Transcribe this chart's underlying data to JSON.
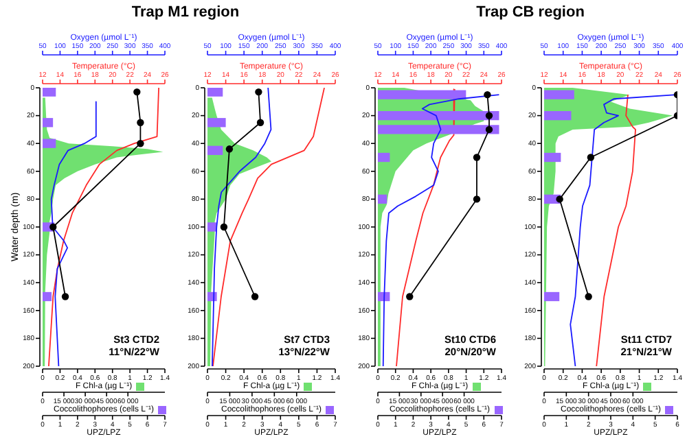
{
  "chart_data": [
    {
      "type": "area",
      "orientation": "horizontal",
      "title": "Trap M1 region",
      "ylabel": "Water depth (m)",
      "annotations": [
        "St3 CTD2",
        "11°N/22°W"
      ],
      "ylim": [
        200,
        0
      ],
      "yticks": [
        0,
        20,
        40,
        60,
        80,
        100,
        120,
        140,
        160,
        180,
        200
      ],
      "xlabel": "F Chl-a (µg L⁻¹)",
      "xlim": [
        0,
        1.4
      ],
      "xticks": [
        0,
        0.2,
        0.4,
        0.6,
        0.8,
        1,
        1.2,
        1.4
      ],
      "x2label": "Temperature (°C)",
      "x2lim": [
        12,
        26
      ],
      "x2ticks": [
        12,
        14,
        16,
        18,
        20,
        22,
        24,
        26
      ],
      "series": [
        {
          "color": "#70e070",
          "x": [
            7,
            20,
            30,
            36,
            40,
            42,
            44,
            46,
            48,
            50,
            55,
            60,
            65,
            70,
            80,
            90,
            96,
            104,
            120,
            146,
            154,
            200
          ],
          "values": [
            0.03,
            0.04,
            0.05,
            0.08,
            0.3,
            0.8,
            1.2,
            1.38,
            1.1,
            0.85,
            0.6,
            0.4,
            0.25,
            0.15,
            0.12,
            0.1,
            0.08,
            0.08,
            0.05,
            0.03,
            0.03,
            0.02
          ]
        },
        {
          "type": "line",
          "color": "#ff2a2a",
          "axis": "x2",
          "x": [
            0,
            35,
            40,
            45,
            55,
            70,
            90,
            110,
            130,
            150,
            200
          ],
          "values": [
            25.3,
            25.1,
            22.5,
            20.5,
            18.5,
            17,
            15.4,
            14.4,
            13.7,
            13.2,
            12.7
          ]
        }
      ]
    },
    {
      "type": "bar",
      "orientation": "horizontal",
      "tick_labels": "x",
      "ylim": [
        200,
        0
      ],
      "xlabel": "Coccolithophores (cells L⁻¹)",
      "xlim": [
        0,
        86000
      ],
      "xticks": [
        0,
        {
          "value": 15000,
          "label": "15 000"
        },
        {
          "value": 30000,
          "label": "30 000"
        },
        {
          "value": 45000,
          "label": "45 000"
        },
        {
          "value": 60000,
          "label": "60 000"
        }
      ],
      "x2label": "Oxygen (µmol L⁻¹)",
      "x2lim": [
        50,
        400
      ],
      "x2ticks": [
        50,
        100,
        150,
        200,
        250,
        300,
        350,
        400
      ],
      "series": [
        {
          "color": "#9966ff",
          "x": [
            3,
            25,
            40,
            100,
            150
          ],
          "values": [
            9000,
            7000,
            9000,
            8000,
            6000
          ]
        },
        {
          "type": "line",
          "color": "#1a1aff",
          "axis": "x2",
          "x": [
            10,
            35,
            40,
            45,
            55,
            70,
            80,
            100,
            110,
            115,
            130,
            150,
            200
          ],
          "values": [
            203,
            203,
            170,
            123,
            98,
            83,
            75,
            79,
            111,
            121,
            92,
            86,
            96
          ]
        }
      ]
    },
    {
      "type": "line",
      "orientation": "horizontal",
      "tick_labels": "x",
      "ylim": [
        200,
        0
      ],
      "xlabel": "UPZ/LPZ",
      "xlim": [
        0,
        7
      ],
      "xticks": [
        0,
        1,
        2,
        3,
        4,
        5,
        6,
        7
      ],
      "marker": "circle",
      "series": [
        {
          "color": "#000000",
          "x": [
            3,
            25,
            40,
            100,
            150
          ],
          "values": [
            5.4,
            5.6,
            5.6,
            0.6,
            1.3
          ]
        }
      ]
    },
    {
      "type": "area",
      "orientation": "horizontal",
      "annotations": [
        "St7 CTD3",
        "13°N/22°W"
      ],
      "ylim": [
        200,
        0
      ],
      "yticks": [
        0,
        20,
        40,
        60,
        80,
        100,
        120,
        140,
        160,
        180,
        200
      ],
      "xlabel": "F Chl-a (µg L⁻¹)",
      "xlim": [
        0,
        1.4
      ],
      "xticks": [
        0,
        0.2,
        0.4,
        0.6,
        0.8,
        1,
        1.2,
        1.4
      ],
      "x2label": "Temperature (°C)",
      "x2lim": [
        12,
        26
      ],
      "x2ticks": [
        12,
        14,
        16,
        18,
        20,
        22,
        24,
        26
      ],
      "series": [
        {
          "color": "#70e070",
          "x": [
            7,
            15,
            20,
            30,
            40,
            45,
            50,
            53,
            58,
            62,
            70,
            80,
            90,
            96,
            104,
            146,
            154,
            200
          ],
          "values": [
            0.05,
            0.08,
            0.1,
            0.15,
            0.3,
            0.5,
            0.65,
            0.7,
            0.5,
            0.35,
            0.25,
            0.2,
            0.1,
            0.08,
            0.08,
            0.04,
            0.04,
            0.03
          ]
        },
        {
          "type": "line",
          "color": "#ff2a2a",
          "axis": "x2",
          "x": [
            0,
            35,
            45,
            55,
            65,
            80,
            90,
            110,
            150,
            200
          ],
          "values": [
            24.8,
            23.6,
            22.6,
            19,
            17.5,
            16.5,
            15.8,
            14.5,
            13.5,
            12.6
          ]
        }
      ]
    },
    {
      "type": "bar",
      "orientation": "horizontal",
      "tick_labels": "x",
      "ylim": [
        200,
        0
      ],
      "xlabel": "Coccolithophores (cells L⁻¹)",
      "xlim": [
        0,
        86000
      ],
      "xticks": [
        0,
        {
          "value": 15000,
          "label": "15 000"
        },
        {
          "value": 30000,
          "label": "30 000"
        },
        {
          "value": 45000,
          "label": "45 000"
        },
        {
          "value": 60000,
          "label": "60 000"
        }
      ],
      "x2label": "Oxygen (µmol L⁻¹)",
      "x2lim": [
        50,
        400
      ],
      "x2ticks": [
        50,
        100,
        150,
        200,
        250,
        300,
        350,
        400
      ],
      "series": [
        {
          "color": "#9966ff",
          "x": [
            3,
            25,
            45,
            100,
            150
          ],
          "values": [
            10000,
            12000,
            10000,
            6000,
            6000
          ]
        },
        {
          "type": "line",
          "color": "#1a1aff",
          "axis": "x2",
          "x": [
            0,
            30,
            40,
            50,
            60,
            75,
            85,
            100,
            130,
            200
          ],
          "values": [
            216,
            224,
            207,
            182,
            138,
            88,
            81,
            75,
            69,
            63
          ]
        }
      ]
    },
    {
      "type": "line",
      "orientation": "horizontal",
      "tick_labels": "x",
      "ylim": [
        200,
        0
      ],
      "xlabel": "UPZ/LPZ",
      "xlim": [
        0,
        7
      ],
      "xticks": [
        0,
        1,
        2,
        3,
        4,
        5,
        6,
        7
      ],
      "marker": "circle",
      "series": [
        {
          "color": "#000000",
          "x": [
            3,
            25,
            44,
            100,
            150
          ],
          "values": [
            2.8,
            2.9,
            1.2,
            0.9,
            2.6
          ]
        }
      ]
    },
    {
      "type": "area",
      "orientation": "horizontal",
      "title": "Trap CB region",
      "annotations": [
        "St10 CTD6",
        "20°N/20°W"
      ],
      "ylim": [
        200,
        0
      ],
      "yticks": [
        0,
        20,
        40,
        60,
        80,
        100,
        120,
        140,
        160,
        180,
        200
      ],
      "xlabel": "F Chl-a (µg L⁻¹)",
      "xlim": [
        0,
        1.4
      ],
      "xticks": [
        0,
        0.2,
        0.4,
        0.6,
        0.8,
        1,
        1.2,
        1.4
      ],
      "x2label": "Temperature (°C)",
      "x2lim": [
        12,
        26
      ],
      "x2ticks": [
        12,
        14,
        16,
        18,
        20,
        22,
        24,
        26
      ],
      "series": [
        {
          "color": "#70e070",
          "x": [
            0,
            9,
            13,
            17,
            24,
            26,
            34,
            40,
            45,
            54,
            60,
            70,
            76,
            84,
            90,
            100,
            146,
            154,
            200
          ],
          "values": [
            0.3,
            1.05,
            1.1,
            1.2,
            1.2,
            1.1,
            0.8,
            0.55,
            0.4,
            0.28,
            0.2,
            0.15,
            0.12,
            0.1,
            0.05,
            0.03,
            0.03,
            0.03,
            0.03
          ]
        },
        {
          "type": "line",
          "color": "#ff2a2a",
          "axis": "x2",
          "x": [
            1,
            34,
            38,
            50,
            70,
            90,
            110,
            150,
            200
          ],
          "values": [
            20.7,
            20.6,
            20.1,
            19.1,
            18.3,
            17.1,
            16.3,
            14.8,
            14.1
          ]
        }
      ]
    },
    {
      "type": "bar",
      "orientation": "horizontal",
      "tick_labels": "x",
      "ylim": [
        200,
        0
      ],
      "xlabel": "Coccolithophores (cells L⁻¹)",
      "xlim": [
        0,
        86000
      ],
      "xticks": [
        0,
        {
          "value": 15000,
          "label": "15 000"
        },
        {
          "value": 30000,
          "label": "30 000"
        },
        {
          "value": 45000,
          "label": "45 000"
        },
        {
          "value": 60000,
          "label": "60 000"
        }
      ],
      "x2label": "Oxygen (µmol L⁻¹)",
      "x2lim": [
        50,
        400
      ],
      "x2ticks": [
        50,
        100,
        150,
        200,
        250,
        300,
        350,
        400
      ],
      "series": [
        {
          "color": "#9966ff",
          "x": [
            5,
            20,
            30,
            50,
            80,
            150
          ],
          "values": [
            61000,
            84000,
            84000,
            8000,
            6000,
            8000
          ]
        },
        {
          "type": "line",
          "color": "#1a1aff",
          "axis": "x2",
          "x": [
            5,
            8,
            12,
            15,
            20,
            30,
            40,
            50,
            60,
            70,
            78,
            85,
            90,
            110,
            150,
            200
          ],
          "values": [
            393,
            279,
            196,
            176,
            215,
            228,
            208,
            202,
            221,
            208,
            157,
            106,
            81,
            74,
            68,
            65
          ]
        }
      ]
    },
    {
      "type": "line",
      "orientation": "horizontal",
      "tick_labels": "x",
      "ylim": [
        200,
        0
      ],
      "xlabel": "UPZ/LPZ",
      "xlim": [
        0,
        7
      ],
      "xticks": [
        0,
        1,
        2,
        3,
        4,
        5,
        6,
        7
      ],
      "marker": "circle",
      "series": [
        {
          "color": "#000000",
          "x": [
            5,
            20,
            30,
            50,
            80,
            150
          ],
          "values": [
            6.2,
            6.3,
            6.3,
            5.6,
            5.6,
            1.8
          ]
        }
      ]
    },
    {
      "type": "area",
      "orientation": "horizontal",
      "annotations": [
        "St11 CTD7",
        "21°N/21°W"
      ],
      "ylim": [
        200,
        0
      ],
      "yticks": [
        0,
        20,
        40,
        60,
        80,
        100,
        120,
        140,
        160,
        180,
        200
      ],
      "xlabel": "F Chl-a (µg L⁻¹)",
      "xlim": [
        0,
        1.4
      ],
      "xticks": [
        0,
        0.2,
        0.4,
        0.6,
        0.8,
        1,
        1.2,
        1.4
      ],
      "x2label": "Temperatura (°C)",
      "x2lim": [
        12,
        26
      ],
      "x2ticks": [
        12,
        14,
        16,
        18,
        20,
        22,
        24,
        26
      ],
      "series": [
        {
          "color": "#70e070",
          "x": [
            0,
            5,
            10,
            15,
            20,
            25,
            28,
            30,
            35,
            40,
            46,
            54,
            60,
            76,
            85,
            100,
            200
          ],
          "values": [
            0.3,
            0.9,
            0.7,
            0.9,
            1.35,
            1.1,
            0.9,
            0.3,
            0.15,
            0.12,
            0.12,
            0.12,
            0.12,
            0.1,
            0.05,
            0.03,
            0.01
          ]
        },
        {
          "type": "line",
          "color": "#ff2a2a",
          "axis": "x2",
          "x": [
            5,
            20,
            28,
            30,
            60,
            85,
            100,
            150,
            200
          ],
          "values": [
            20.8,
            20.6,
            21.3,
            21.6,
            21.3,
            20.6,
            19.8,
            18.3,
            17.5
          ]
        }
      ]
    },
    {
      "type": "bar",
      "orientation": "horizontal",
      "tick_labels": "x",
      "ylim": [
        200,
        0
      ],
      "xlabel": "Coccolithophores (cells L⁻¹)",
      "xlim": [
        0,
        90000
      ],
      "xticks": [
        0,
        {
          "value": 15000,
          "label": "15 000"
        },
        {
          "value": 30000,
          "label": "30 000"
        },
        {
          "value": 45000,
          "label": "45 000"
        },
        {
          "value": 60000,
          "label": "60 000"
        }
      ],
      "x2label": "Oxygen (µmol L⁻¹)",
      "x2lim": [
        50,
        400
      ],
      "x2ticks": [
        50,
        100,
        150,
        200,
        250,
        300,
        350,
        400
      ],
      "series": [
        {
          "color": "#9966ff",
          "x": [
            5,
            20,
            50,
            80,
            150
          ],
          "values": [
            20000,
            18000,
            11000,
            11000,
            10000
          ]
        },
        {
          "type": "line",
          "color": "#1a1aff",
          "axis": "x2",
          "x": [
            5,
            8,
            12,
            18,
            20,
            25,
            30,
            50,
            70,
            85,
            100,
            150,
            170,
            200
          ],
          "values": [
            397,
            233,
            207,
            214,
            245,
            207,
            182,
            176,
            170,
            151,
            145,
            132,
            119,
            132
          ]
        }
      ]
    },
    {
      "type": "line",
      "orientation": "horizontal",
      "tick_labels": "x",
      "ylim": [
        200,
        0
      ],
      "xlabel": "UPZ/LPZ",
      "xlim": [
        0,
        6
      ],
      "xticks": [
        0,
        1,
        2,
        3,
        4,
        5,
        6
      ],
      "marker": "circle",
      "series": [
        {
          "color": "#000000",
          "x": [
            5,
            20,
            50,
            80,
            150
          ],
          "values": [
            6,
            6,
            2.1,
            0.7,
            2
          ]
        }
      ]
    }
  ]
}
